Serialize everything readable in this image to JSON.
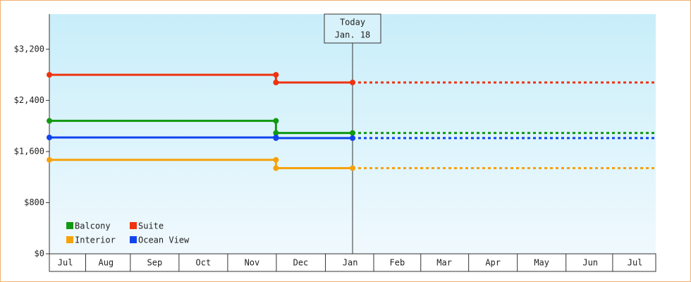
{
  "chart_data": {
    "type": "step",
    "x": [
      0,
      142,
      142,
      190
    ],
    "xlim": [
      0,
      380
    ],
    "xticks": [
      {
        "value": 10,
        "label": "Jul"
      },
      {
        "value": 35.5,
        "label": "Aug"
      },
      {
        "value": 66,
        "label": "Sep"
      },
      {
        "value": 96.5,
        "label": "Oct"
      },
      {
        "value": 127,
        "label": "Nov"
      },
      {
        "value": 157.5,
        "label": "Dec"
      },
      {
        "value": 188.5,
        "label": "Jan"
      },
      {
        "value": 218,
        "label": "Feb"
      },
      {
        "value": 247.5,
        "label": "Mar"
      },
      {
        "value": 278,
        "label": "Apr"
      },
      {
        "value": 308.5,
        "label": "May"
      },
      {
        "value": 339,
        "label": "Jun"
      },
      {
        "value": 367,
        "label": "Jul"
      }
    ],
    "ylim": [
      0,
      3750
    ],
    "yticks": [
      {
        "value": 0,
        "label": "$0"
      },
      {
        "value": 800,
        "label": "$800"
      },
      {
        "value": 1600,
        "label": "$1,600"
      },
      {
        "value": 2400,
        "label": "$2,400"
      },
      {
        "value": 3200,
        "label": "$3,200"
      }
    ],
    "series": [
      {
        "name": "Balcony",
        "color": "#119911",
        "values": [
          2080,
          2080,
          1890,
          1890
        ]
      },
      {
        "name": "Suite",
        "color": "#ee3311",
        "values": [
          2800,
          2800,
          2680,
          2680
        ]
      },
      {
        "name": "Interior",
        "color": "#f5a20a",
        "values": [
          1470,
          1470,
          1340,
          1340
        ]
      },
      {
        "name": "Ocean View",
        "color": "#1144ee",
        "values": [
          1820,
          1820,
          1810,
          1810
        ]
      }
    ],
    "annotation": {
      "x": 190,
      "lines": [
        "Today",
        "Jan. 18"
      ]
    },
    "legend": "bottom-left"
  }
}
